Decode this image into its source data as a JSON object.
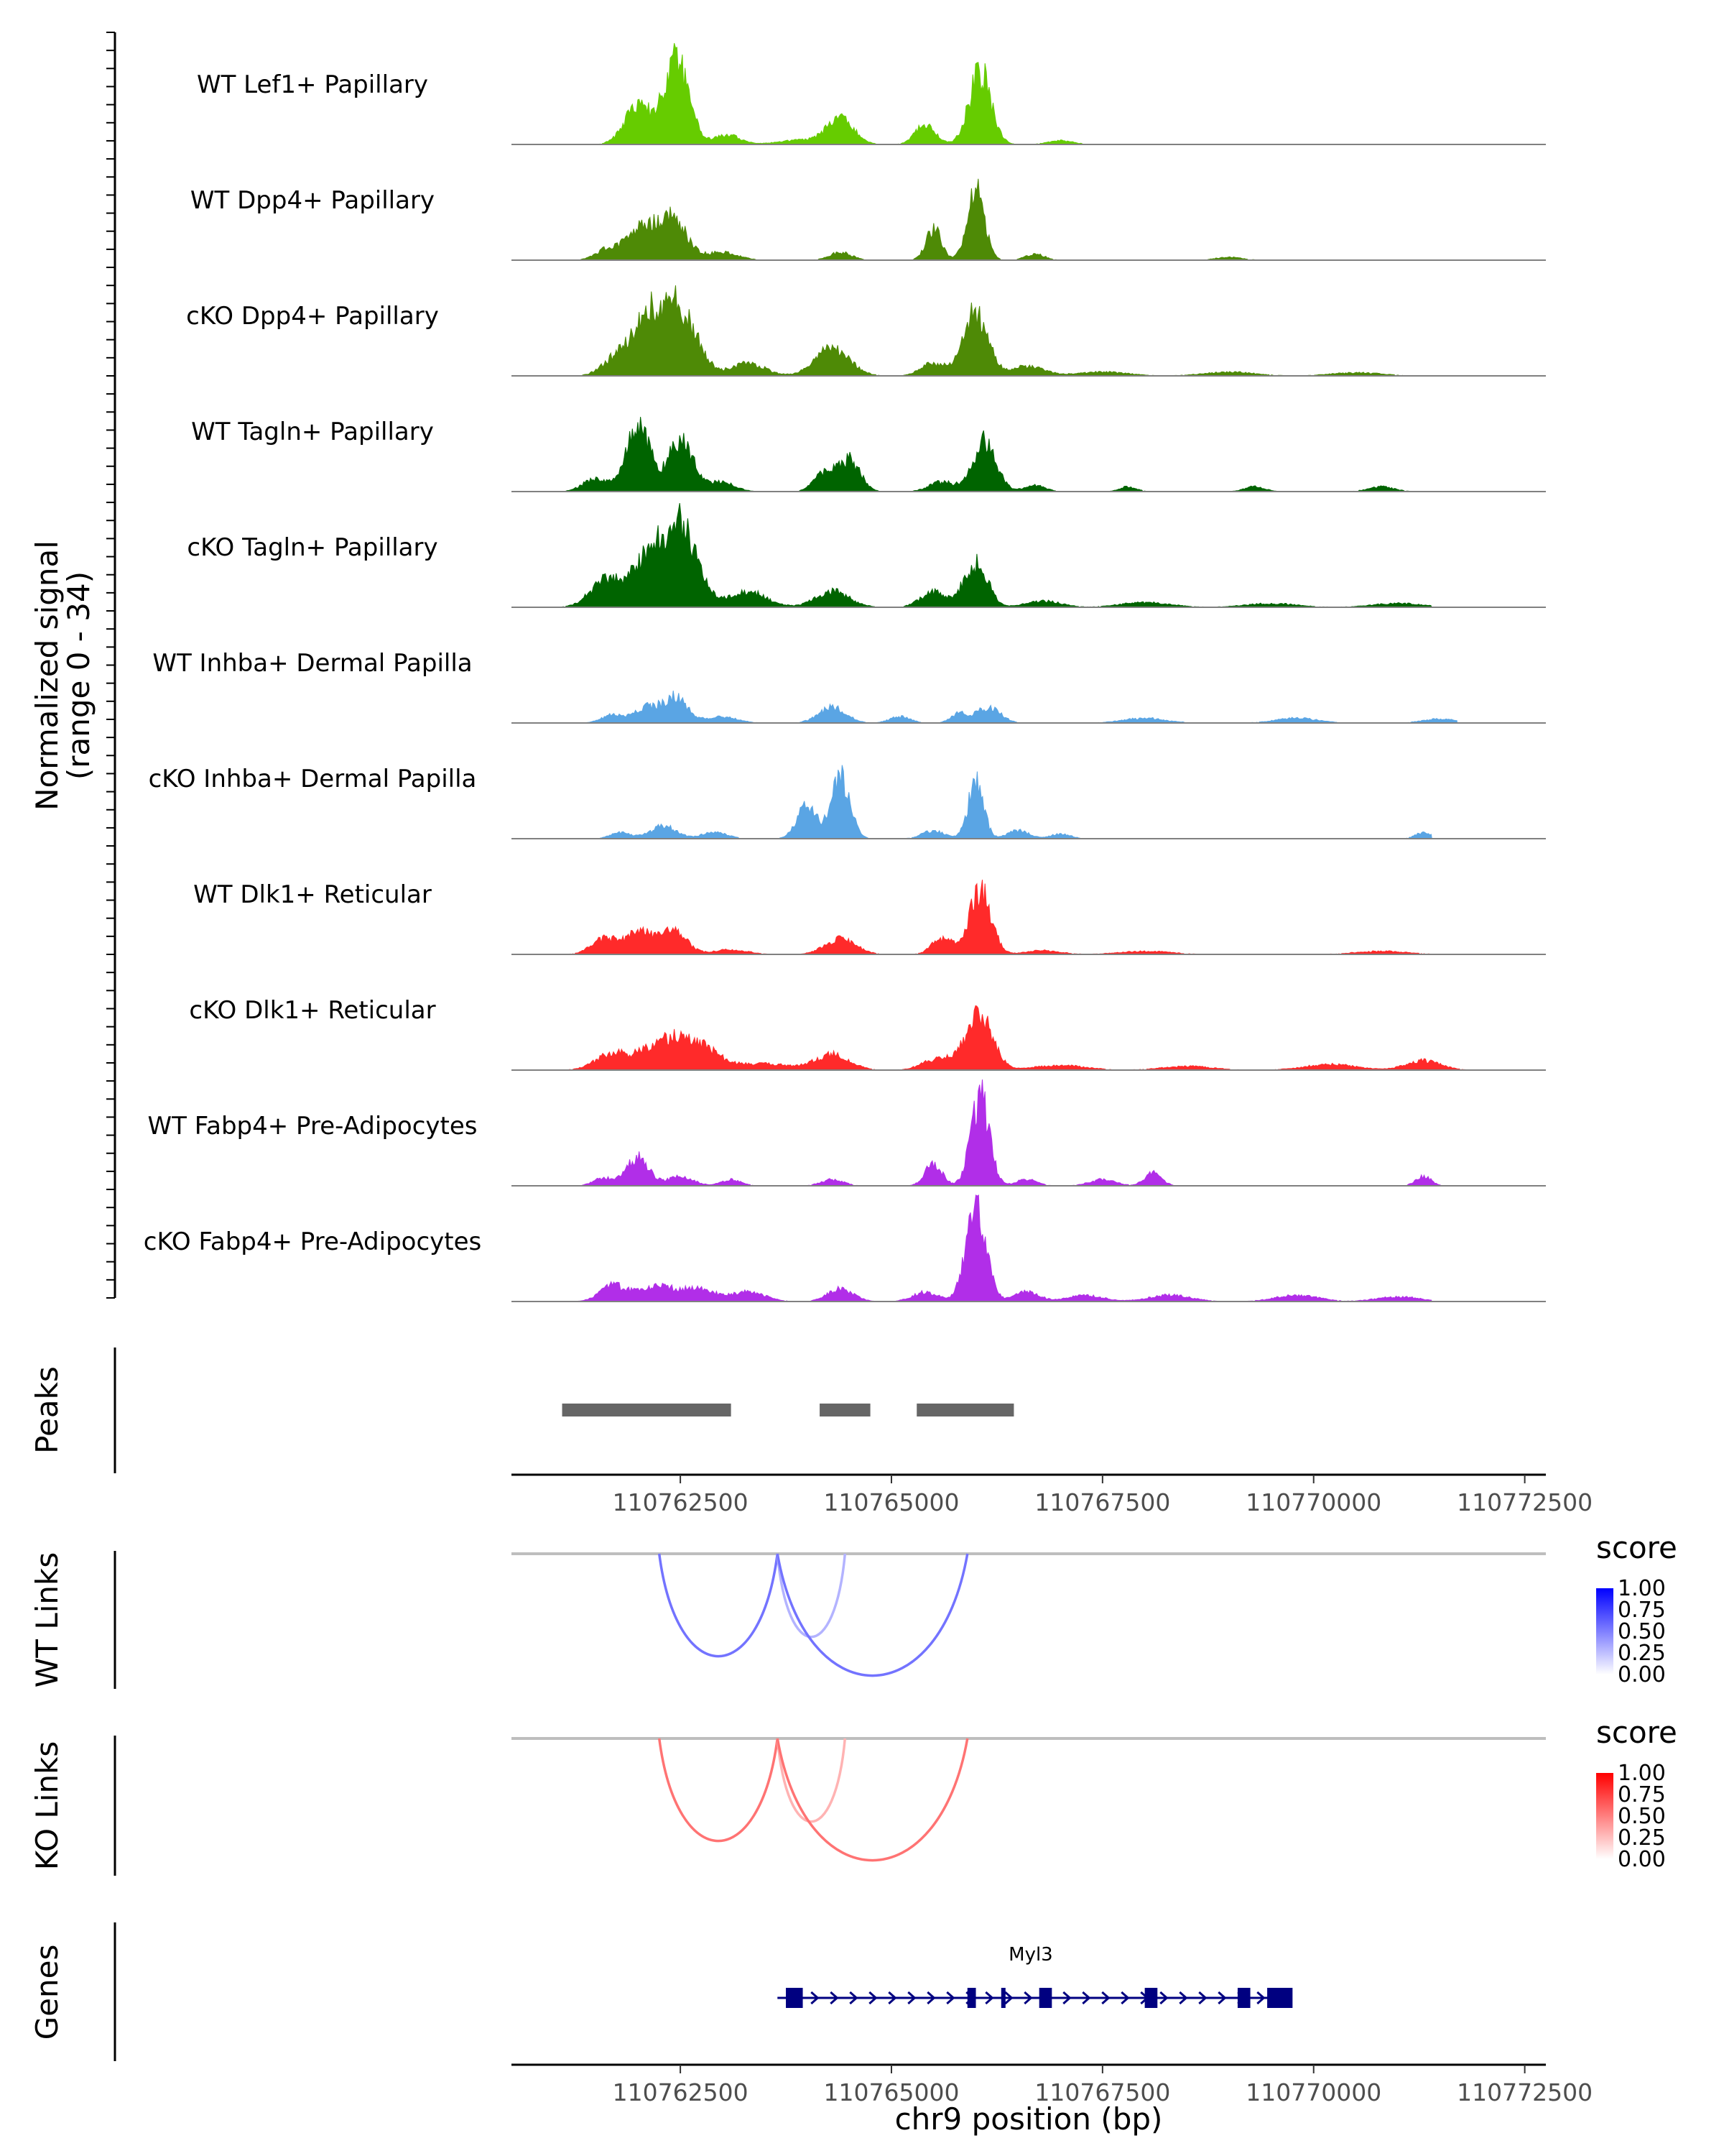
{
  "chart_data": {
    "type": "area",
    "title": "",
    "xlabel": "chr9 position (bp)",
    "x_ticks": [
      110762500,
      110765000,
      110767500,
      110770000,
      110772500
    ],
    "xlim": [
      110760500,
      110772750
    ],
    "coverage": {
      "ylabel": "Normalized signal",
      "ylabel_range": "(range 0 - 34)",
      "ylim": [
        0,
        34
      ],
      "tracks": [
        {
          "name": "WT Lef1+ Papillary",
          "color": "#66cc00",
          "peaks": [
            [
              110762000,
              12,
              160
            ],
            [
              110762450,
              26,
              150
            ],
            [
              110763050,
              3,
              150
            ],
            [
              110764000,
              1.5,
              300
            ],
            [
              110764400,
              8,
              150
            ],
            [
              110765400,
              6,
              120
            ],
            [
              110766050,
              23,
              130
            ],
            [
              110767000,
              1.2,
              150
            ],
            [
              110770900,
              0.5,
              200
            ]
          ],
          "start": 110761100,
          "end": 110770500
        },
        {
          "name": "WT Dpp4+ Papillary",
          "color": "#4e8a06",
          "peaks": [
            [
              110761600,
              3,
              120
            ],
            [
              110762000,
              10,
              170
            ],
            [
              110762400,
              14,
              170
            ],
            [
              110763000,
              2.5,
              180
            ],
            [
              110764400,
              2.5,
              130
            ],
            [
              110765500,
              10,
              90
            ],
            [
              110766000,
              24,
              100
            ],
            [
              110766700,
              2,
              110
            ],
            [
              110769000,
              1,
              150
            ],
            [
              110771000,
              0.8,
              150
            ]
          ],
          "start": 110761100,
          "end": 110770500
        },
        {
          "name": "cKO Dpp4+ Papillary",
          "color": "#4e8a06",
          "peaks": [
            [
              110761700,
              4,
              150
            ],
            [
              110762100,
              18,
              200
            ],
            [
              110762500,
              20,
              200
            ],
            [
              110763300,
              4,
              200
            ],
            [
              110764300,
              9,
              200
            ],
            [
              110765500,
              4,
              150
            ],
            [
              110766000,
              20,
              140
            ],
            [
              110766600,
              3,
              200
            ],
            [
              110767500,
              1.2,
              300
            ],
            [
              110769000,
              1.2,
              300
            ],
            [
              110770500,
              1,
              300
            ]
          ],
          "start": 110761100,
          "end": 110771100
        },
        {
          "name": "WT Tagln+ Papillary",
          "color": "#006400",
          "peaks": [
            [
              110761500,
              4,
              150
            ],
            [
              110762000,
              20,
              140
            ],
            [
              110762500,
              16,
              150
            ],
            [
              110763000,
              3,
              150
            ],
            [
              110764200,
              6,
              120
            ],
            [
              110764500,
              10,
              130
            ],
            [
              110765600,
              3,
              150
            ],
            [
              110766100,
              16,
              140
            ],
            [
              110766700,
              2,
              120
            ],
            [
              110767800,
              1.5,
              100
            ],
            [
              110769300,
              1.5,
              120
            ],
            [
              110770800,
              1.5,
              150
            ]
          ],
          "start": 110761100,
          "end": 110772300
        },
        {
          "name": "cKO Tagln+ Papillary",
          "color": "#006400",
          "peaks": [
            [
              110761600,
              8,
              180
            ],
            [
              110762100,
              14,
              200
            ],
            [
              110762500,
              25,
              200
            ],
            [
              110763300,
              5,
              220
            ],
            [
              110764300,
              5,
              200
            ],
            [
              110765500,
              5,
              150
            ],
            [
              110766000,
              14,
              140
            ],
            [
              110766800,
              2,
              200
            ],
            [
              110768000,
              1.5,
              300
            ],
            [
              110769500,
              1.2,
              300
            ],
            [
              110771000,
              1.2,
              300
            ]
          ],
          "start": 110761100,
          "end": 110771400
        },
        {
          "name": "WT Inhba+ Dermal Papilla",
          "color": "#5aa5e4",
          "peaks": [
            [
              110761700,
              2.5,
              130
            ],
            [
              110762100,
              5,
              150
            ],
            [
              110762450,
              8,
              140
            ],
            [
              110763000,
              2,
              180
            ],
            [
              110764300,
              5,
              160
            ],
            [
              110765100,
              2,
              120
            ],
            [
              110765800,
              3,
              100
            ],
            [
              110766150,
              5,
              140
            ],
            [
              110768000,
              1.5,
              250
            ],
            [
              110769800,
              1.5,
              250
            ],
            [
              110771500,
              1.3,
              200
            ]
          ],
          "start": 110761200,
          "end": 110771700
        },
        {
          "name": "cKO Inhba+ Dermal Papilla",
          "color": "#5aa5e4",
          "peaks": [
            [
              110761800,
              2,
              120
            ],
            [
              110762300,
              4,
              150
            ],
            [
              110762900,
              2,
              150
            ],
            [
              110764000,
              10,
              120
            ],
            [
              110764400,
              19,
              110
            ],
            [
              110765500,
              2.5,
              130
            ],
            [
              110766000,
              18,
              90
            ],
            [
              110766500,
              2.5,
              130
            ],
            [
              110767000,
              1.5,
              120
            ],
            [
              110771300,
              2,
              90
            ]
          ],
          "start": 110761200,
          "end": 110771400
        },
        {
          "name": "WT Dlk1+ Reticular",
          "color": "#ff2a2a",
          "peaks": [
            [
              110761600,
              5,
              150
            ],
            [
              110762000,
              7,
              150
            ],
            [
              110762400,
              8,
              160
            ],
            [
              110763100,
              1.5,
              200
            ],
            [
              110764400,
              5,
              180
            ],
            [
              110765600,
              5,
              120
            ],
            [
              110766050,
              20,
              130
            ],
            [
              110766800,
              1.2,
              200
            ],
            [
              110768000,
              1,
              300
            ],
            [
              110770800,
              1,
              300
            ]
          ],
          "start": 110761100,
          "end": 110771700
        },
        {
          "name": "cKO Dlk1+ Reticular",
          "color": "#ff2a2a",
          "peaks": [
            [
              110761700,
              5,
              200
            ],
            [
              110762300,
              8,
              250
            ],
            [
              110762700,
              7,
              250
            ],
            [
              110763500,
              2,
              300
            ],
            [
              110764300,
              5,
              200
            ],
            [
              110765600,
              4,
              200
            ],
            [
              110766050,
              18,
              150
            ],
            [
              110767000,
              1.5,
              300
            ],
            [
              110768500,
              1.2,
              300
            ],
            [
              110770200,
              1.8,
              300
            ],
            [
              110771300,
              3,
              200
            ]
          ],
          "start": 110761100,
          "end": 110772300
        },
        {
          "name": "WT Fabp4+ Pre-Adipocytes",
          "color": "#b12ee8",
          "peaks": [
            [
              110761600,
              2.5,
              120
            ],
            [
              110762000,
              9,
              130
            ],
            [
              110762500,
              3,
              150
            ],
            [
              110763100,
              2,
              120
            ],
            [
              110764300,
              2,
              130
            ],
            [
              110765500,
              7,
              100
            ],
            [
              110766050,
              28,
              110
            ],
            [
              110766600,
              2,
              120
            ],
            [
              110767500,
              2,
              150
            ],
            [
              110768100,
              4,
              100
            ],
            [
              110771300,
              3,
              90
            ]
          ],
          "start": 110761100,
          "end": 110771500
        },
        {
          "name": "cKO Fabp4+ Pre-Adipocytes",
          "color": "#b12ee8",
          "peaks": [
            [
              110761700,
              5,
              150
            ],
            [
              110762200,
              5,
              200
            ],
            [
              110762700,
              4,
              200
            ],
            [
              110763300,
              3,
              200
            ],
            [
              110764400,
              4,
              150
            ],
            [
              110765400,
              3,
              150
            ],
            [
              110766000,
              30,
              120
            ],
            [
              110766600,
              3,
              150
            ],
            [
              110767300,
              2,
              200
            ],
            [
              110768300,
              2,
              250
            ],
            [
              110769800,
              2,
              250
            ],
            [
              110771000,
              1.5,
              250
            ]
          ],
          "start": 110761200,
          "end": 110771400
        }
      ]
    },
    "peaks_track": {
      "label": "Peaks",
      "intervals": [
        [
          110761100,
          110763100
        ],
        [
          110764150,
          110764750
        ],
        [
          110765300,
          110766450
        ]
      ]
    },
    "links": [
      {
        "label": "WT Links",
        "legend_title": "score",
        "color_low": "#ffffff",
        "color_high": "#0000ff",
        "legend_ticks": [
          "1.00",
          "0.75",
          "0.50",
          "0.25",
          "0.00"
        ],
        "arcs": [
          {
            "start": 110762250,
            "end": 110763650,
            "score": 0.55
          },
          {
            "start": 110763650,
            "end": 110764450,
            "score": 0.3
          },
          {
            "start": 110763650,
            "end": 110765900,
            "score": 0.55
          }
        ]
      },
      {
        "label": "KO Links",
        "legend_title": "score",
        "color_low": "#ffffff",
        "color_high": "#ff0000",
        "legend_ticks": [
          "1.00",
          "0.75",
          "0.50",
          "0.25",
          "0.00"
        ],
        "arcs": [
          {
            "start": 110762250,
            "end": 110763650,
            "score": 0.55
          },
          {
            "start": 110763650,
            "end": 110764450,
            "score": 0.3
          },
          {
            "start": 110763650,
            "end": 110765900,
            "score": 0.55
          }
        ]
      }
    ],
    "genes": {
      "label": "Genes",
      "items": [
        {
          "name": "Myl3",
          "start": 110763650,
          "end": 110769650,
          "strand": "+",
          "exons": [
            [
              110763750,
              110763950
            ],
            [
              110765900,
              110766000
            ],
            [
              110766300,
              110766350
            ],
            [
              110766750,
              110766900
            ],
            [
              110768000,
              110768150
            ],
            [
              110769100,
              110769250
            ],
            [
              110769450,
              110769750
            ]
          ]
        }
      ]
    }
  }
}
